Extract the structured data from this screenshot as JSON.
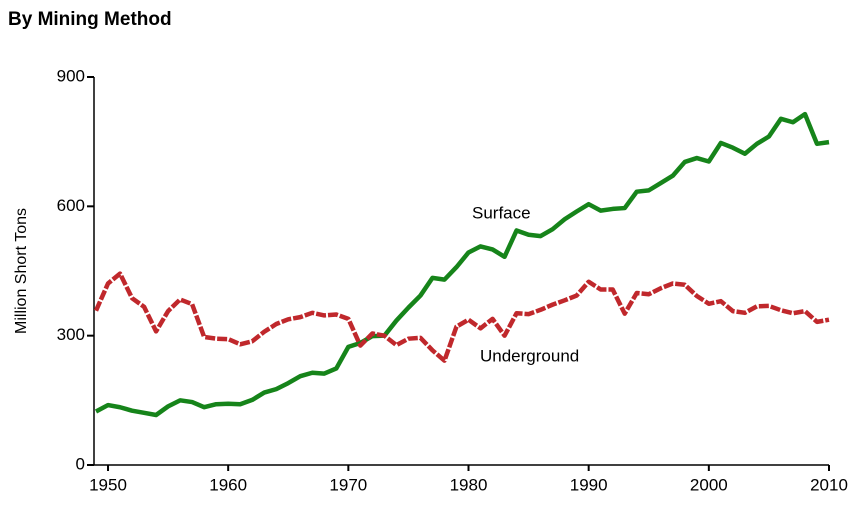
{
  "chart_data": {
    "type": "line",
    "title": "By Mining Method",
    "y_label": "Million Short Tons",
    "x": [
      1949,
      1950,
      1951,
      1952,
      1953,
      1954,
      1955,
      1956,
      1957,
      1958,
      1959,
      1960,
      1961,
      1962,
      1963,
      1964,
      1965,
      1966,
      1967,
      1968,
      1969,
      1970,
      1971,
      1972,
      1973,
      1974,
      1975,
      1976,
      1977,
      1978,
      1979,
      1980,
      1981,
      1982,
      1983,
      1984,
      1985,
      1986,
      1987,
      1988,
      1989,
      1990,
      1991,
      1992,
      1993,
      1994,
      1995,
      1996,
      1997,
      1998,
      1999,
      2000,
      2001,
      2002,
      2003,
      2004,
      2005,
      2006,
      2007,
      2008,
      2009,
      2010
    ],
    "series": [
      {
        "name": "Surface",
        "color": "#16841a",
        "values": [
          124,
          139,
          134,
          126,
          121,
          116,
          136,
          150,
          146,
          134,
          141,
          142,
          141,
          151,
          168,
          176,
          190,
          206,
          214,
          212,
          224,
          274,
          283,
          299,
          300,
          335,
          365,
          393,
          434,
          430,
          459,
          493,
          507,
          500,
          483,
          544,
          534,
          531,
          547,
          570,
          588,
          605,
          590,
          594,
          596,
          634,
          637,
          654,
          671,
          703,
          712,
          704,
          747,
          736,
          722,
          745,
          762,
          803,
          795,
          814,
          745,
          749
        ]
      },
      {
        "name": "Underground",
        "color": "#c0282c",
        "values": [
          358,
          421,
          444,
          387,
          367,
          310,
          357,
          384,
          373,
          297,
          293,
          292,
          280,
          287,
          309,
          327,
          338,
          343,
          353,
          347,
          349,
          339,
          277,
          305,
          300,
          278,
          293,
          295,
          266,
          242,
          321,
          337,
          317,
          339,
          300,
          352,
          350,
          360,
          372,
          382,
          393,
          425,
          407,
          407,
          351,
          399,
          396,
          410,
          421,
          418,
          392,
          374,
          380,
          357,
          353,
          368,
          369,
          359,
          352,
          357,
          332,
          337
        ]
      }
    ],
    "xlim": [
      1949,
      2010
    ],
    "ylim": [
      0,
      900
    ],
    "xticks": [
      1950,
      1960,
      1970,
      1980,
      1990,
      2000,
      2010
    ],
    "yticks": [
      0,
      300,
      600,
      900
    ]
  }
}
